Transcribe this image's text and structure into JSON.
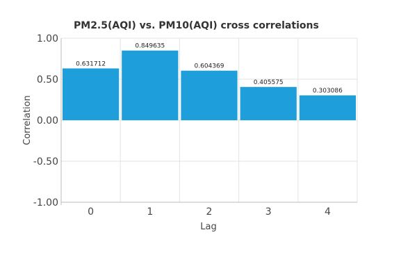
{
  "chart_data": {
    "type": "bar",
    "title": "PM2.5(AQI) vs. PM10(AQI) cross correlations",
    "xlabel": "Lag",
    "ylabel": "Correlation",
    "categories": [
      "0",
      "1",
      "2",
      "3",
      "4"
    ],
    "values": [
      0.631712,
      0.849635,
      0.604369,
      0.405575,
      0.303086
    ],
    "value_labels": [
      "0.631712",
      "0.849635",
      "0.604369",
      "0.405575",
      "0.303086"
    ],
    "ylim": [
      -1.0,
      1.0
    ],
    "yticks": [
      1.0,
      0.5,
      0.0,
      -0.5,
      -1.0
    ],
    "ytick_labels": [
      "1.00",
      "0.50",
      "0.00",
      "-0.50",
      "-1.00"
    ],
    "grid": true,
    "bar_color": "#1e9fdc"
  }
}
